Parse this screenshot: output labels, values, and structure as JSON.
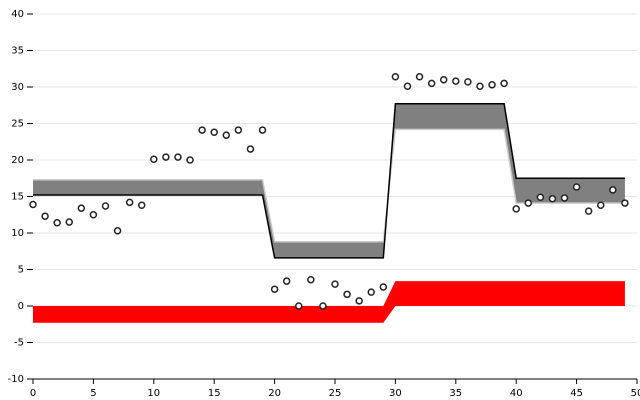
{
  "chart_data": {
    "type": "scatter",
    "x": [
      0,
      1,
      2,
      3,
      4,
      5,
      6,
      7,
      8,
      9,
      10,
      11,
      12,
      13,
      14,
      15,
      16,
      17,
      18,
      19,
      20,
      21,
      22,
      23,
      24,
      25,
      26,
      27,
      28,
      29,
      30,
      31,
      32,
      33,
      34,
      35,
      36,
      37,
      38,
      39,
      40,
      41,
      42,
      43,
      44,
      45,
      46,
      47,
      48,
      49
    ],
    "xlim": [
      0,
      50
    ],
    "xticks": [
      0,
      5,
      10,
      15,
      20,
      25,
      30,
      35,
      40,
      45,
      50
    ],
    "ylim": [
      -10,
      40
    ],
    "yticks": [
      -10,
      -5,
      0,
      5,
      10,
      15,
      20,
      25,
      30,
      35,
      40
    ],
    "grid": true,
    "series": [
      {
        "type": "band",
        "color": "#ff0000",
        "values": [
          0,
          0,
          0,
          0,
          0,
          0,
          0,
          0,
          0,
          0,
          0,
          0,
          0,
          0,
          0,
          0,
          0,
          0,
          0,
          0,
          0,
          0,
          0,
          0,
          0,
          0,
          0,
          0,
          0,
          0,
          3.4,
          3.4,
          3.4,
          3.4,
          3.4,
          3.4,
          3.4,
          3.4,
          3.4,
          3.4,
          3.4,
          3.4,
          3.4,
          3.4,
          3.4,
          3.4,
          3.4,
          3.4,
          3.4,
          3.4
        ],
        "base": [
          -2.3,
          -2.3,
          -2.3,
          -2.3,
          -2.3,
          -2.3,
          -2.3,
          -2.3,
          -2.3,
          -2.3,
          -2.3,
          -2.3,
          -2.3,
          -2.3,
          -2.3,
          -2.3,
          -2.3,
          -2.3,
          -2.3,
          -2.3,
          -2.3,
          -2.3,
          -2.3,
          -2.3,
          -2.3,
          -2.3,
          -2.3,
          -2.3,
          -2.3,
          -2.3,
          0,
          0,
          0,
          0,
          0,
          0,
          0,
          0,
          0,
          0,
          0,
          0,
          0,
          0,
          0,
          0,
          0,
          0,
          0,
          0
        ]
      },
      {
        "type": "band",
        "color": "#808080",
        "line_color": "#000000",
        "base_color": "#cccccc",
        "values": [
          15.2,
          15.2,
          15.2,
          15.2,
          15.2,
          15.2,
          15.2,
          15.2,
          15.2,
          15.2,
          15.2,
          15.2,
          15.2,
          15.2,
          15.2,
          15.2,
          15.2,
          15.2,
          15.2,
          15.2,
          6.6,
          6.6,
          6.6,
          6.6,
          6.6,
          6.6,
          6.6,
          6.6,
          6.6,
          6.6,
          27.7,
          27.7,
          27.7,
          27.7,
          27.7,
          27.7,
          27.7,
          27.7,
          27.7,
          27.7,
          17.5,
          17.5,
          17.5,
          17.5,
          17.5,
          17.5,
          17.5,
          17.5,
          17.5,
          17.5
        ],
        "base": [
          17.3,
          17.3,
          17.3,
          17.3,
          17.3,
          17.3,
          17.3,
          17.3,
          17.3,
          17.3,
          17.3,
          17.3,
          17.3,
          17.3,
          17.3,
          17.3,
          17.3,
          17.3,
          17.3,
          17.3,
          8.8,
          8.8,
          8.8,
          8.8,
          8.8,
          8.8,
          8.8,
          8.8,
          8.8,
          8.8,
          24.2,
          24.2,
          24.2,
          24.2,
          24.2,
          24.2,
          24.2,
          24.2,
          24.2,
          24.2,
          14.1,
          14.1,
          14.1,
          14.1,
          14.1,
          14.1,
          14.1,
          14.1,
          14.1,
          14.1
        ]
      },
      {
        "type": "scatter",
        "color": "#222222",
        "values": [
          13.9,
          12.3,
          11.4,
          11.5,
          13.4,
          12.5,
          13.7,
          10.3,
          14.2,
          13.8,
          20.1,
          20.4,
          20.4,
          20.0,
          24.1,
          23.8,
          23.4,
          24.1,
          21.5,
          24.1,
          2.3,
          3.4,
          0,
          3.6,
          0,
          3.0,
          1.6,
          0.7,
          1.9,
          2.6,
          31.4,
          30.1,
          31.4,
          30.5,
          31.0,
          30.8,
          30.7,
          30.1,
          30.3,
          30.5,
          13.3,
          14.1,
          14.9,
          14.7,
          14.8,
          16.3,
          13.0,
          13.8,
          15.9,
          14.1
        ]
      }
    ]
  }
}
